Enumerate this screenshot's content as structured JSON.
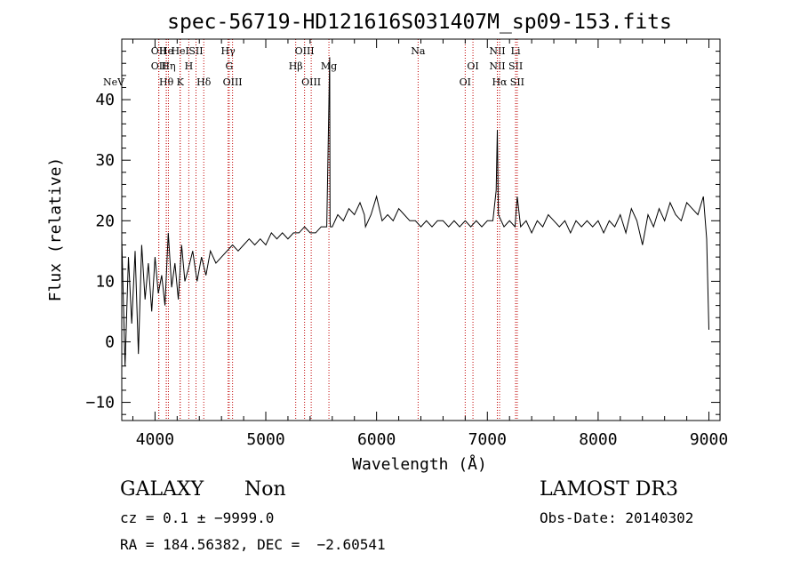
{
  "chart_data": {
    "type": "line",
    "title": "spec-56719-HD121616S031407M_sp09-153.fits",
    "xlabel": "Wavelength (Å)",
    "ylabel": "Flux (relative)",
    "xlim": [
      3700,
      9100
    ],
    "ylim": [
      -13,
      50
    ],
    "xticks": [
      4000,
      5000,
      6000,
      7000,
      8000,
      9000
    ],
    "yticks": [
      -10,
      0,
      10,
      20,
      30,
      40
    ],
    "grid": false,
    "series": [
      {
        "name": "flux",
        "x": [
          3700,
          3730,
          3760,
          3790,
          3820,
          3850,
          3880,
          3910,
          3940,
          3970,
          4000,
          4030,
          4060,
          4090,
          4120,
          4150,
          4180,
          4210,
          4240,
          4270,
          4300,
          4340,
          4380,
          4420,
          4460,
          4500,
          4550,
          4600,
          4650,
          4700,
          4750,
          4800,
          4850,
          4900,
          4950,
          5000,
          5050,
          5100,
          5150,
          5200,
          5250,
          5300,
          5350,
          5400,
          5450,
          5500,
          5550,
          5577,
          5580,
          5583,
          5600,
          5650,
          5700,
          5750,
          5800,
          5850,
          5890,
          5900,
          5950,
          6000,
          6050,
          6100,
          6150,
          6200,
          6250,
          6300,
          6350,
          6400,
          6450,
          6500,
          6550,
          6600,
          6650,
          6700,
          6750,
          6800,
          6850,
          6900,
          6950,
          7000,
          7050,
          7080,
          7090,
          7100,
          7150,
          7200,
          7250,
          7270,
          7300,
          7350,
          7400,
          7450,
          7500,
          7550,
          7600,
          7650,
          7700,
          7750,
          7800,
          7850,
          7900,
          7950,
          8000,
          8050,
          8100,
          8150,
          8200,
          8250,
          8300,
          8350,
          8400,
          8450,
          8500,
          8550,
          8600,
          8650,
          8700,
          8750,
          8800,
          8850,
          8900,
          8950,
          8980,
          9000
        ],
        "y": [
          17,
          -4,
          14,
          3,
          15,
          -2,
          16,
          7,
          13,
          5,
          14,
          8,
          11,
          6,
          18,
          9,
          13,
          7,
          16,
          10,
          12,
          15,
          10,
          14,
          11,
          15,
          13,
          14,
          15,
          16,
          15,
          16,
          17,
          16,
          17,
          16,
          18,
          17,
          18,
          17,
          18,
          18,
          19,
          18,
          18,
          19,
          19,
          47,
          20,
          19,
          19,
          21,
          20,
          22,
          21,
          23,
          21,
          19,
          21,
          24,
          20,
          21,
          20,
          22,
          21,
          20,
          20,
          19,
          20,
          19,
          20,
          20,
          19,
          20,
          19,
          20,
          19,
          20,
          19,
          20,
          20,
          25,
          35,
          21,
          19,
          20,
          19,
          24,
          19,
          20,
          18,
          20,
          19,
          21,
          20,
          19,
          20,
          18,
          20,
          19,
          20,
          19,
          20,
          18,
          20,
          19,
          21,
          18,
          22,
          20,
          16,
          21,
          19,
          22,
          20,
          23,
          21,
          20,
          23,
          22,
          21,
          24,
          17,
          2
        ]
      }
    ],
    "lines": [
      {
        "x": 3426,
        "label": "NeV",
        "row": 3
      },
      {
        "x": 4034,
        "label": "OII",
        "row": 1
      },
      {
        "x": 4034,
        "label": "OII",
        "row": 2
      },
      {
        "x": 4102,
        "label": "Hθ",
        "row": 3
      },
      {
        "x": 4102,
        "label": "He",
        "row": 1
      },
      {
        "x": 4121,
        "label": "Hη",
        "row": 2
      },
      {
        "x": 4227,
        "label": "HeI",
        "row": 1
      },
      {
        "x": 4227,
        "label": "K",
        "row": 3
      },
      {
        "x": 4305,
        "label": "H",
        "row": 2
      },
      {
        "x": 4370,
        "label": "SII",
        "row": 1
      },
      {
        "x": 4440,
        "label": "Hδ",
        "row": 3
      },
      {
        "x": 4660,
        "label": "Hγ",
        "row": 1
      },
      {
        "x": 4670,
        "label": "G",
        "row": 2
      },
      {
        "x": 4700,
        "label": "OIII",
        "row": 3
      },
      {
        "x": 5270,
        "label": "Hβ",
        "row": 2
      },
      {
        "x": 5350,
        "label": "OIII",
        "row": 1
      },
      {
        "x": 5410,
        "label": "OIII",
        "row": 3
      },
      {
        "x": 5570,
        "label": "Mg",
        "row": 2
      },
      {
        "x": 6375,
        "label": "Na",
        "row": 1
      },
      {
        "x": 6800,
        "label": "OI",
        "row": 3
      },
      {
        "x": 6870,
        "label": "OI",
        "row": 2
      },
      {
        "x": 7090,
        "label": "NII",
        "row": 1
      },
      {
        "x": 7090,
        "label": "NII",
        "row": 2
      },
      {
        "x": 7110,
        "label": "Hα",
        "row": 3
      },
      {
        "x": 7255,
        "label": "Li",
        "row": 1
      },
      {
        "x": 7255,
        "label": "SII",
        "row": 2
      },
      {
        "x": 7270,
        "label": "SII",
        "row": 3
      }
    ]
  },
  "footer": {
    "class_label": "GALAXY",
    "subclass_label": "Non",
    "survey": "LAMOST DR3",
    "cz_text": "cz = 0.1 ± −9999.0",
    "obs_date": "Obs-Date: 20140302",
    "coords": "RA = 184.56382, DEC =  −2.60541"
  },
  "colors": {
    "line": "#000000",
    "marker": "#c00000",
    "axis": "#000000"
  }
}
